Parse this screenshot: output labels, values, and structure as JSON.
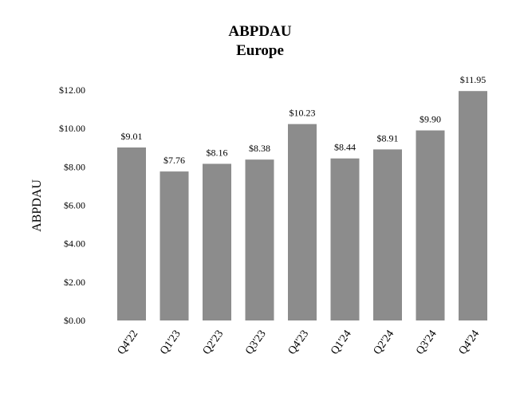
{
  "chart_data": {
    "type": "bar",
    "title": "ABPDAU",
    "subtitle": "Europe",
    "ylabel": "ABPDAU",
    "xlabel": "",
    "categories": [
      "Q4'22",
      "Q1'23",
      "Q2'23",
      "Q3'23",
      "Q4'23",
      "Q1'24",
      "Q2'24",
      "Q3'24",
      "Q4'24"
    ],
    "values": [
      9.01,
      7.76,
      8.16,
      8.38,
      10.23,
      8.44,
      8.91,
      9.9,
      11.95
    ],
    "data_labels": [
      "$9.01",
      "$7.76",
      "$8.16",
      "$8.38",
      "$10.23",
      "$8.44",
      "$8.91",
      "$9.90",
      "$11.95"
    ],
    "ylim": [
      0,
      12
    ],
    "yticks": [
      0,
      2,
      4,
      6,
      8,
      10,
      12
    ],
    "ytick_labels": [
      "$0.00",
      "$2.00",
      "$4.00",
      "$6.00",
      "$8.00",
      "$10.00",
      "$12.00"
    ],
    "grid": false,
    "legend": "none",
    "bar_color": "#8c8c8c"
  }
}
